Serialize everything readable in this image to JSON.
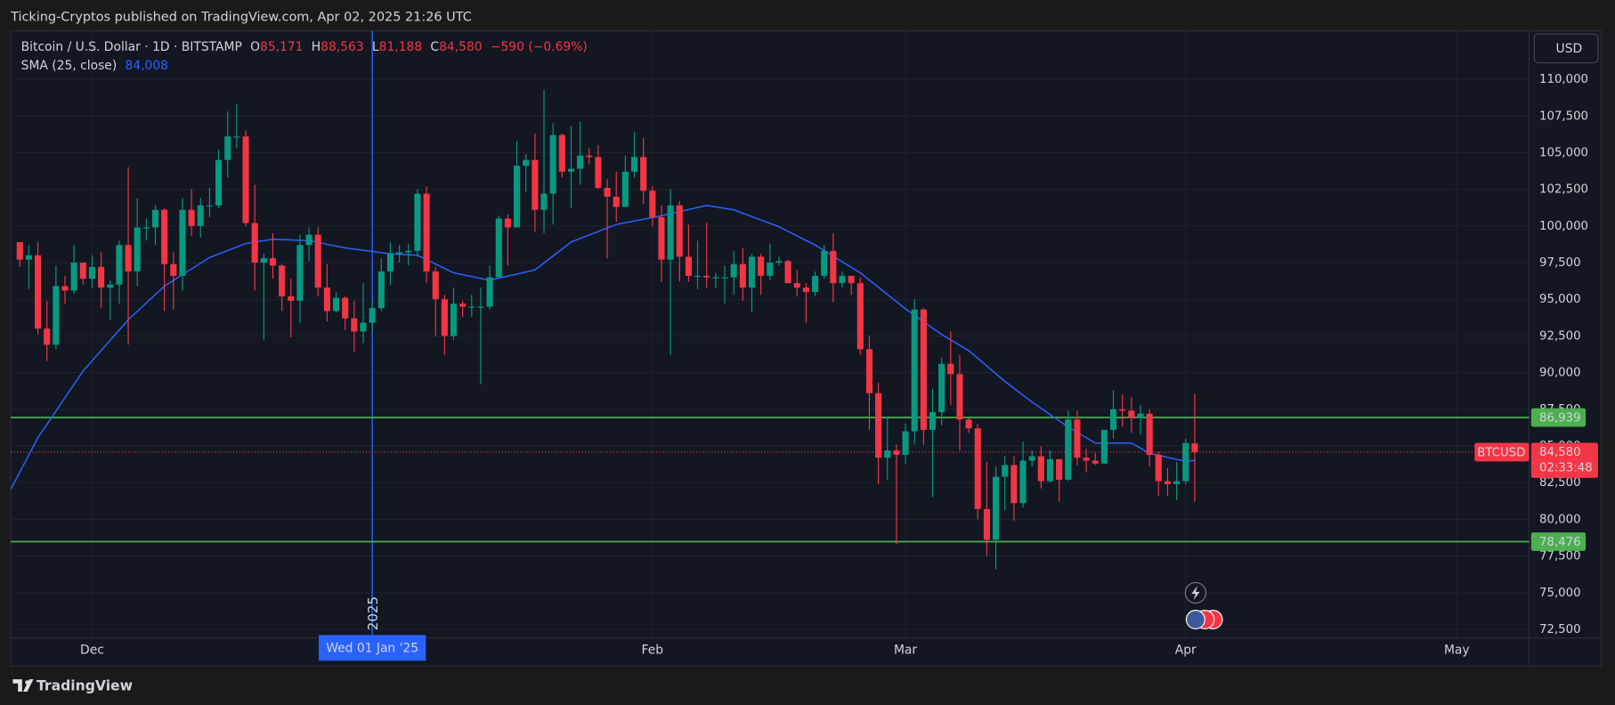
{
  "header": "Ticking-Cryptos published on TradingView.com, Apr 02, 2025 21:26 UTC",
  "footer": "TradingView",
  "chart_data": {
    "type": "candlestick",
    "title": "Bitcoin / U.S. Dollar · 1D · BITSTAMP",
    "ohlc_legend": [
      {
        "key": "O",
        "value": "85,171"
      },
      {
        "key": "H",
        "value": "88,563"
      },
      {
        "key": "L",
        "value": "81,188"
      },
      {
        "key": "C",
        "value": "84,580"
      }
    ],
    "change": "−590 (−0.69%)",
    "currency": "USD",
    "up_color": "#089981",
    "down_color": "#f23645",
    "x": [
      "2024-11-23",
      "2024-11-24",
      "2024-11-25",
      "2024-11-26",
      "2024-11-27",
      "2024-11-28",
      "2024-11-29",
      "2024-11-30",
      "2024-12-01",
      "2024-12-02",
      "2024-12-03",
      "2024-12-04",
      "2024-12-05",
      "2024-12-06",
      "2024-12-07",
      "2024-12-08",
      "2024-12-09",
      "2024-12-10",
      "2024-12-11",
      "2024-12-12",
      "2024-12-13",
      "2024-12-14",
      "2024-12-15",
      "2024-12-16",
      "2024-12-17",
      "2024-12-18",
      "2024-12-19",
      "2024-12-20",
      "2024-12-21",
      "2024-12-22",
      "2024-12-23",
      "2024-12-24",
      "2024-12-25",
      "2024-12-26",
      "2024-12-27",
      "2024-12-28",
      "2024-12-29",
      "2024-12-30",
      "2024-12-31",
      "2025-01-01",
      "2025-01-02",
      "2025-01-03",
      "2025-01-04",
      "2025-01-05",
      "2025-01-06",
      "2025-01-07",
      "2025-01-08",
      "2025-01-09",
      "2025-01-10",
      "2025-01-11",
      "2025-01-12",
      "2025-01-13",
      "2025-01-14",
      "2025-01-15",
      "2025-01-16",
      "2025-01-17",
      "2025-01-18",
      "2025-01-19",
      "2025-01-20",
      "2025-01-21",
      "2025-01-22",
      "2025-01-23",
      "2025-01-24",
      "2025-01-25",
      "2025-01-26",
      "2025-01-27",
      "2025-01-28",
      "2025-01-29",
      "2025-01-30",
      "2025-01-31",
      "2025-02-01",
      "2025-02-02",
      "2025-02-03",
      "2025-02-04",
      "2025-02-05",
      "2025-02-06",
      "2025-02-07",
      "2025-02-08",
      "2025-02-09",
      "2025-02-10",
      "2025-02-11",
      "2025-02-12",
      "2025-02-13",
      "2025-02-14",
      "2025-02-15",
      "2025-02-16",
      "2025-02-17",
      "2025-02-18",
      "2025-02-19",
      "2025-02-20",
      "2025-02-21",
      "2025-02-22",
      "2025-02-23",
      "2025-02-24",
      "2025-02-25",
      "2025-02-26",
      "2025-02-27",
      "2025-02-28",
      "2025-03-01",
      "2025-03-02",
      "2025-03-03",
      "2025-03-04",
      "2025-03-05",
      "2025-03-06",
      "2025-03-07",
      "2025-03-08",
      "2025-03-09",
      "2025-03-10",
      "2025-03-11",
      "2025-03-12",
      "2025-03-13",
      "2025-03-14",
      "2025-03-15",
      "2025-03-16",
      "2025-03-17",
      "2025-03-18",
      "2025-03-19",
      "2025-03-20",
      "2025-03-21",
      "2025-03-22",
      "2025-03-23",
      "2025-03-24",
      "2025-03-25",
      "2025-03-26",
      "2025-03-27",
      "2025-03-28",
      "2025-03-29",
      "2025-03-30",
      "2025-03-31",
      "2025-04-01",
      "2025-04-02"
    ],
    "open": [
      98900,
      97700,
      98000,
      93000,
      91900,
      95900,
      95600,
      97500,
      96400,
      97200,
      95800,
      96000,
      98700,
      96900,
      99900,
      99900,
      101100,
      97400,
      96600,
      101100,
      100000,
      101400,
      101400,
      104500,
      106100,
      106100,
      100200,
      97500,
      97800,
      97300,
      95200,
      94900,
      98700,
      99400,
      95800,
      94200,
      95100,
      93700,
      92800,
      93400,
      94400,
      96900,
      98100,
      98200,
      98300,
      102200,
      96900,
      95000,
      92500,
      94700,
      94500,
      94500,
      94500,
      96500,
      100500,
      99900,
      104100,
      104500,
      101100,
      102200,
      106200,
      103700,
      103900,
      104800,
      104700,
      102600,
      102000,
      101300,
      103700,
      104700,
      102400,
      100600,
      97700,
      101400,
      97900,
      96600,
      96600,
      96500,
      96500,
      96500,
      97400,
      95800,
      97900,
      96600,
      97500,
      97600,
      96100,
      95800,
      95500,
      96600,
      98300,
      96100,
      96600,
      96100,
      91600,
      88600,
      84200,
      84700,
      84400,
      86000,
      94300,
      86100,
      87300,
      90600,
      89900,
      86800,
      86200,
      80700,
      78600,
      82900,
      83700,
      81100,
      84000,
      84300,
      82600,
      84100,
      82700,
      86800,
      84200,
      84000,
      83800,
      86100,
      87500,
      87400,
      86900,
      87200,
      84400,
      82600,
      82400,
      82600,
      85171
    ],
    "high": [
      98900,
      98700,
      98900,
      94900,
      97300,
      96600,
      98700,
      97500,
      98000,
      98200,
      96300,
      99000,
      104000,
      101900,
      100500,
      101400,
      101200,
      98200,
      101900,
      102500,
      101900,
      102600,
      105200,
      107800,
      108300,
      106500,
      102800,
      98100,
      99500,
      97400,
      96400,
      99400,
      99900,
      99900,
      97400,
      95500,
      95200,
      94900,
      96100,
      94900,
      97800,
      98900,
      98700,
      98800,
      102500,
      102700,
      97200,
      95300,
      95800,
      94900,
      95300,
      95800,
      97300,
      100700,
      100800,
      105800,
      104900,
      106300,
      109300,
      107000,
      106300,
      106800,
      107100,
      105300,
      105500,
      103200,
      103700,
      104800,
      106400,
      106000,
      102700,
      101400,
      102500,
      101700,
      100100,
      99000,
      100200,
      96800,
      97300,
      98300,
      98500,
      98100,
      98100,
      98800,
      97900,
      97700,
      97000,
      96100,
      96900,
      98700,
      99500,
      96900,
      96600,
      96500,
      92500,
      89300,
      87000,
      85100,
      86500,
      95000,
      94400,
      88900,
      91000,
      92800,
      91200,
      86900,
      86500,
      83900,
      83600,
      84300,
      84300,
      85300,
      84700,
      85000,
      84700,
      84100,
      87400,
      87400,
      84800,
      84500,
      86100,
      88800,
      88500,
      88300,
      87800,
      87500,
      84600,
      83500,
      83900,
      85500,
      88563
    ],
    "low": [
      97200,
      95700,
      92600,
      90800,
      91600,
      94700,
      95400,
      96000,
      95800,
      94400,
      93600,
      94700,
      91900,
      95900,
      99000,
      98700,
      94200,
      94300,
      95600,
      99300,
      99200,
      100600,
      101200,
      103300,
      105300,
      100000,
      95600,
      92200,
      96400,
      94200,
      92400,
      93400,
      97600,
      95200,
      93500,
      94100,
      92900,
      91400,
      92000,
      92800,
      94200,
      96000,
      97500,
      97300,
      97900,
      96100,
      92500,
      91200,
      92200,
      93800,
      93800,
      89200,
      94300,
      96500,
      97300,
      99900,
      102300,
      99600,
      99500,
      100100,
      103300,
      101200,
      102800,
      104200,
      102500,
      97800,
      100300,
      101300,
      103300,
      101500,
      100000,
      96200,
      91200,
      96200,
      96200,
      95700,
      95800,
      95800,
      94700,
      95300,
      94900,
      94100,
      95300,
      96300,
      97300,
      96100,
      95200,
      93400,
      95200,
      96400,
      94800,
      95800,
      95300,
      91200,
      86100,
      82400,
      82700,
      78300,
      83800,
      85100,
      85100,
      81500,
      86400,
      87800,
      84700,
      85900,
      80000,
      77500,
      76600,
      80600,
      79900,
      80800,
      83600,
      82100,
      82500,
      81200,
      82600,
      83700,
      83200,
      83700,
      83800,
      85500,
      86300,
      85900,
      85800,
      83600,
      81600,
      81600,
      81300,
      82400,
      81188
    ],
    "close": [
      97700,
      98000,
      93000,
      91900,
      95900,
      95600,
      97500,
      96400,
      97200,
      95800,
      96000,
      98700,
      96900,
      99900,
      99900,
      101100,
      97400,
      96600,
      101100,
      100000,
      101400,
      101400,
      104500,
      106100,
      106100,
      100200,
      97500,
      97800,
      97300,
      95200,
      94900,
      98700,
      99400,
      95800,
      94200,
      95100,
      93700,
      92800,
      93400,
      94400,
      96900,
      98100,
      98200,
      98300,
      102200,
      96900,
      95000,
      92500,
      94700,
      94500,
      94500,
      94500,
      96500,
      100500,
      99900,
      104100,
      104500,
      101100,
      102200,
      106200,
      103700,
      103900,
      104800,
      104700,
      102600,
      102000,
      101300,
      103700,
      104700,
      102400,
      100600,
      97700,
      101400,
      97900,
      96600,
      96600,
      96500,
      96500,
      96500,
      97400,
      95800,
      97900,
      96600,
      97500,
      97600,
      96100,
      95800,
      95500,
      96600,
      98300,
      96100,
      96600,
      96100,
      91600,
      88600,
      84200,
      84700,
      84400,
      86000,
      94300,
      86100,
      87300,
      90600,
      89900,
      86800,
      86200,
      80700,
      78600,
      82900,
      83700,
      81100,
      84000,
      84300,
      82600,
      84100,
      82700,
      86800,
      84200,
      84000,
      83800,
      86100,
      87500,
      87400,
      86900,
      87200,
      84400,
      82600,
      82400,
      82600,
      85200,
      84580
    ],
    "sma": {
      "name": "SMA (25, close)",
      "color": "#2962ff",
      "x": [
        "2024-11-22",
        "2024-11-25",
        "2024-11-30",
        "2024-12-05",
        "2024-12-09",
        "2024-12-14",
        "2024-12-18",
        "2024-12-21",
        "2024-12-25",
        "2024-12-29",
        "2025-01-03",
        "2025-01-06",
        "2025-01-10",
        "2025-01-14",
        "2025-01-19",
        "2025-01-23",
        "2025-01-28",
        "2025-02-02",
        "2025-02-07",
        "2025-02-10",
        "2025-02-15",
        "2025-02-19",
        "2025-02-24",
        "2025-03-01",
        "2025-03-05",
        "2025-03-08",
        "2025-03-12",
        "2025-03-15",
        "2025-03-19",
        "2025-03-22",
        "2025-03-26",
        "2025-03-28",
        "2025-04-01",
        "2025-04-02"
      ],
      "values": [
        82050,
        85560,
        90100,
        93600,
        95900,
        97850,
        98800,
        99100,
        99000,
        98500,
        98100,
        98000,
        96800,
        96300,
        97000,
        98900,
        100100,
        100700,
        101400,
        101100,
        99950,
        98700,
        96800,
        94350,
        92600,
        91500,
        89400,
        88000,
        86300,
        85200,
        85200,
        84500,
        83950,
        84008
      ],
      "last": {
        "value": 84008,
        "label": "84,008"
      }
    },
    "hlines": [
      {
        "value": 86939,
        "label": "86,939",
        "color": "#4caf50"
      },
      {
        "value": 78476,
        "label": "78,476",
        "color": "#4caf50"
      }
    ],
    "last_price": {
      "value": 84580,
      "label": "84,580",
      "symbol": "BTCUSD",
      "countdown": "02:33:48",
      "color": "#f23645"
    },
    "marker": {
      "x": "2025-01-01",
      "year_label": "2025",
      "crosshair_label": "Wed 01 Jan '25",
      "color": "#2962ff"
    },
    "xlim": [
      "2024-11-22",
      "2025-05-09"
    ],
    "xticks": [
      {
        "value": "2024-12-01",
        "label": "Dec"
      },
      {
        "value": "2025-02-01",
        "label": "Feb"
      },
      {
        "value": "2025-03-01",
        "label": "Mar"
      },
      {
        "value": "2025-04-01",
        "label": "Apr"
      },
      {
        "value": "2025-05-01",
        "label": "May"
      }
    ],
    "ylim": [
      71900,
      113300
    ],
    "yticks": [
      {
        "value": 72500,
        "label": "72,500"
      },
      {
        "value": 75000,
        "label": "75,000"
      },
      {
        "value": 77500,
        "label": "77,500"
      },
      {
        "value": 80000,
        "label": "80,000"
      },
      {
        "value": 82500,
        "label": "82,500"
      },
      {
        "value": 85000,
        "label": "85,000"
      },
      {
        "value": 87500,
        "label": "87,500"
      },
      {
        "value": 90000,
        "label": "90,000"
      },
      {
        "value": 92500,
        "label": "92,500"
      },
      {
        "value": 95000,
        "label": "95,000"
      },
      {
        "value": 97500,
        "label": "97,500"
      },
      {
        "value": 100000,
        "label": "100,000"
      },
      {
        "value": 102500,
        "label": "102,500"
      },
      {
        "value": 105000,
        "label": "105,000"
      },
      {
        "value": 107500,
        "label": "107,500"
      },
      {
        "value": 110000,
        "label": "110,000"
      }
    ],
    "grid": true
  }
}
